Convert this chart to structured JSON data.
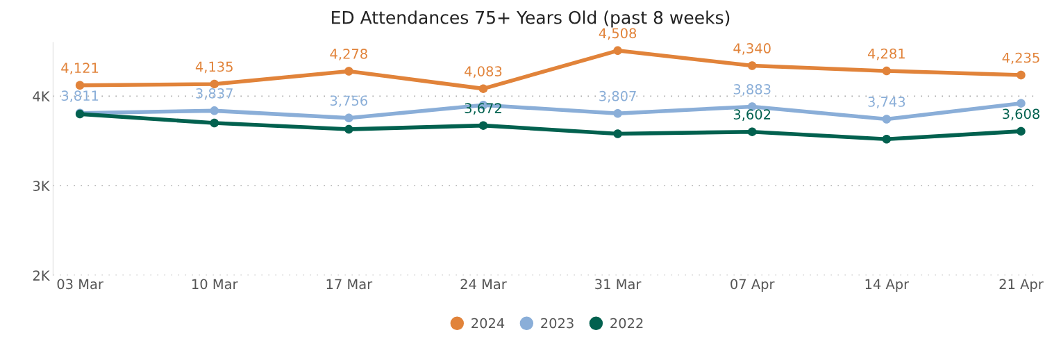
{
  "chart_data": {
    "type": "line",
    "title": "ED Attendances 75+ Years Old (past 8 weeks)",
    "categories": [
      "03 Mar",
      "10 Mar",
      "17 Mar",
      "24 Mar",
      "31 Mar",
      "07 Apr",
      "14 Apr",
      "21 Apr"
    ],
    "series": [
      {
        "name": "2024",
        "color": "#e1833a",
        "values": [
          4121,
          4135,
          4278,
          4083,
          4508,
          4340,
          4281,
          4235
        ],
        "value_labels": [
          "4,121",
          "4,135",
          "4,278",
          "4,083",
          "4,508",
          "4,340",
          "4,281",
          "4,235"
        ]
      },
      {
        "name": "2023",
        "color": "#8aaed8",
        "values": [
          3811,
          3837,
          3756,
          3900,
          3807,
          3883,
          3743,
          3920
        ],
        "value_labels": [
          "3,811",
          "3,837",
          "3,756",
          null,
          "3,807",
          "3,883",
          "3,743",
          null
        ]
      },
      {
        "name": "2022",
        "color": "#02614f",
        "values": [
          3800,
          3700,
          3630,
          3672,
          3580,
          3602,
          3520,
          3608
        ],
        "value_labels": [
          null,
          null,
          null,
          "3,672",
          null,
          "3,602",
          null,
          "3,608"
        ]
      }
    ],
    "ylim": [
      2000,
      4600
    ],
    "yticks": [
      {
        "value": 2000,
        "label": "2K"
      },
      {
        "value": 3000,
        "label": "3K"
      },
      {
        "value": 4000,
        "label": "4K"
      }
    ],
    "grid": "y",
    "legend": "bottom",
    "marker": "circle",
    "line_style": "solid"
  }
}
